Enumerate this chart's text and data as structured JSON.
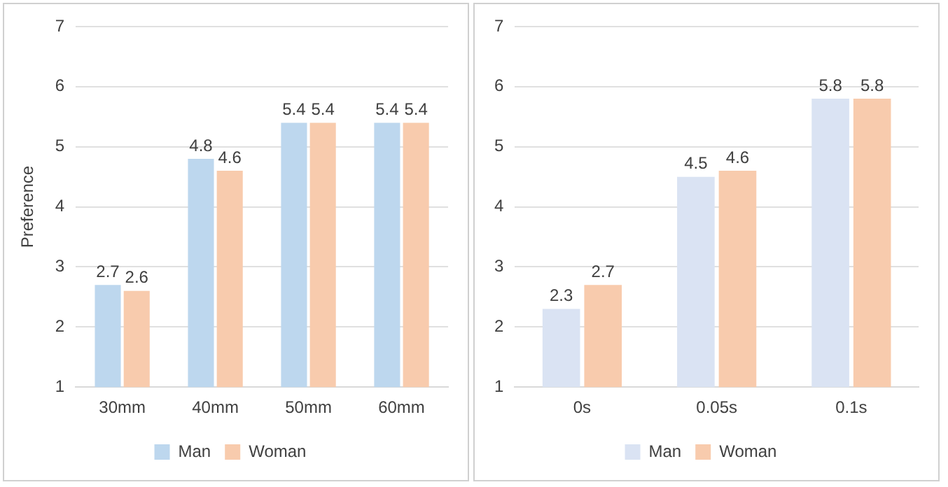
{
  "chart_data": [
    {
      "type": "bar",
      "ylabel": "Preference",
      "categories": [
        "30mm",
        "40mm",
        "50mm",
        "60mm"
      ],
      "series": [
        {
          "name": "Man",
          "color": "#bdd7ee",
          "values": [
            2.7,
            4.8,
            5.4,
            5.4
          ]
        },
        {
          "name": "Woman",
          "color": "#f8cbad",
          "values": [
            2.6,
            4.6,
            5.4,
            5.4
          ]
        }
      ],
      "ylim": [
        1,
        7
      ],
      "yticks": [
        1,
        2,
        3,
        4,
        5,
        6,
        7
      ],
      "grid": "y",
      "legend": "bottom",
      "data_labels": true
    },
    {
      "type": "bar",
      "categories": [
        "0s",
        "0.05s",
        "0.1s"
      ],
      "series": [
        {
          "name": "Man",
          "color": "#dae3f3",
          "values": [
            2.3,
            4.5,
            5.8
          ]
        },
        {
          "name": "Woman",
          "color": "#f8cbad",
          "values": [
            2.7,
            4.6,
            5.8
          ]
        }
      ],
      "ylim": [
        1,
        7
      ],
      "yticks": [
        1,
        2,
        3,
        4,
        5,
        6,
        7
      ],
      "grid": "y",
      "legend": "bottom",
      "data_labels": true
    }
  ]
}
